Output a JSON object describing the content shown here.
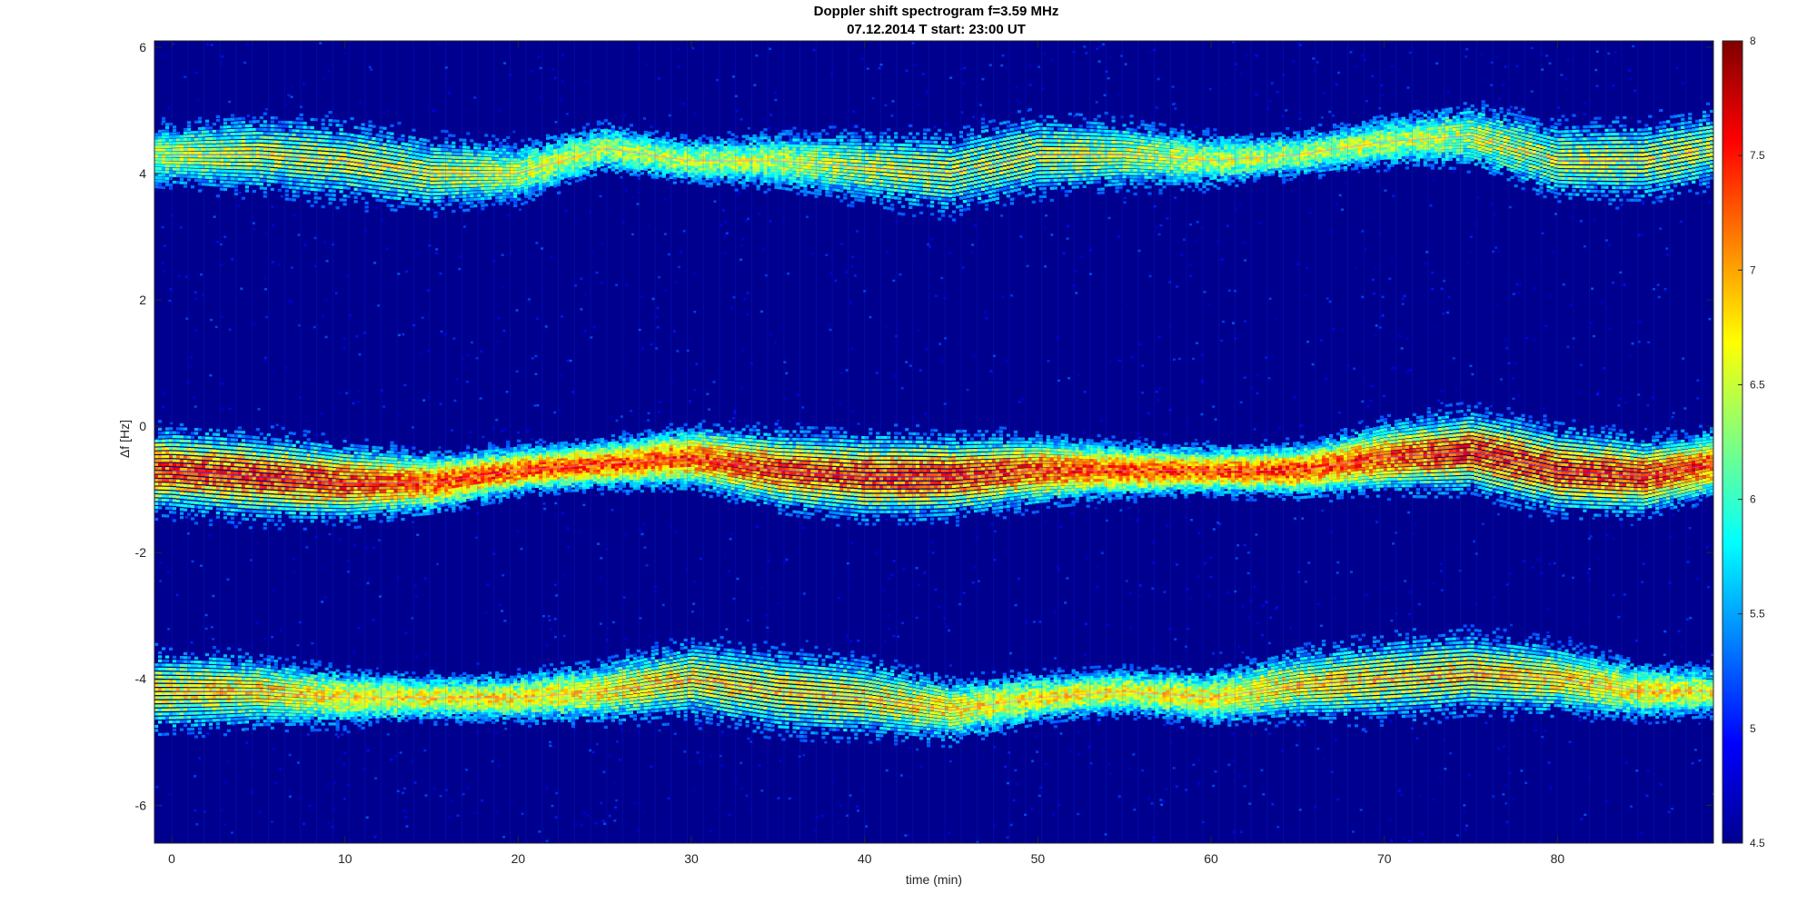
{
  "chart_data": {
    "type": "heatmap",
    "title": "Doppler shift spectrogram f=3.59 MHz",
    "subtitle": "07.12.2014   T start: 23:00 UT",
    "xlabel": "time (min)",
    "ylabel": "Δf [Hz]",
    "xlim": [
      -1,
      89
    ],
    "ylim": [
      -6.6,
      6.1
    ],
    "xticks": [
      0,
      10,
      20,
      30,
      40,
      50,
      60,
      70,
      80
    ],
    "yticks": [
      6,
      4,
      2,
      0,
      -2,
      -4,
      -6
    ],
    "colorbar": {
      "range": [
        4.5,
        8
      ],
      "ticks": [
        8,
        7.5,
        7,
        6.5,
        6,
        5.5,
        5,
        4.5
      ],
      "colormap": "jet"
    },
    "colors": {
      "background": "#00008f",
      "low": "#0000ff",
      "mid": "#00ffff",
      "high": "#ff0000"
    },
    "traces": [
      {
        "x": [
          0,
          5,
          10,
          15,
          20,
          25,
          30,
          35,
          40,
          45,
          50,
          55,
          60,
          65,
          70,
          75,
          80,
          85,
          89
        ],
        "y": [
          4.3,
          4.3,
          4.2,
          4.0,
          4.0,
          4.4,
          4.2,
          4.2,
          4.1,
          4.0,
          4.3,
          4.3,
          4.2,
          4.3,
          4.5,
          4.6,
          4.2,
          4.2,
          4.4
        ],
        "intensity": 0.55
      },
      {
        "x": [
          0,
          5,
          10,
          15,
          20,
          25,
          30,
          35,
          40,
          45,
          50,
          55,
          60,
          65,
          70,
          75,
          80,
          85,
          89
        ],
        "y": [
          -0.7,
          -0.8,
          -0.9,
          -0.9,
          -0.7,
          -0.6,
          -0.5,
          -0.7,
          -0.8,
          -0.8,
          -0.7,
          -0.7,
          -0.7,
          -0.7,
          -0.5,
          -0.4,
          -0.7,
          -0.8,
          -0.6
        ],
        "intensity": 0.8
      },
      {
        "x": [
          0,
          5,
          10,
          15,
          20,
          25,
          30,
          35,
          40,
          45,
          50,
          55,
          60,
          65,
          70,
          75,
          80,
          85,
          89
        ],
        "y": [
          -4.2,
          -4.2,
          -4.3,
          -4.3,
          -4.3,
          -4.2,
          -4.0,
          -4.2,
          -4.3,
          -4.5,
          -4.3,
          -4.2,
          -4.3,
          -4.1,
          -4.0,
          -3.9,
          -4.0,
          -4.2,
          -4.2
        ],
        "intensity": 0.62
      }
    ]
  }
}
